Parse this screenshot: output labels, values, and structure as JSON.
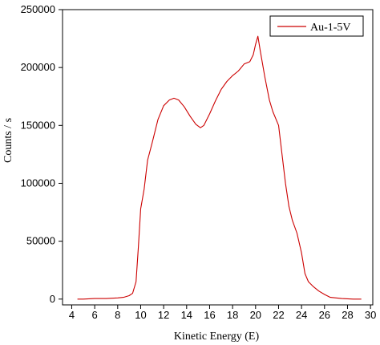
{
  "chart_data": {
    "type": "line",
    "xlabel": "Kinetic Energy (E)",
    "ylabel": "Counts / s",
    "xlim": [
      3.2,
      30.2
    ],
    "ylim": [
      -5000,
      250000
    ],
    "x_ticks": [
      4,
      6,
      8,
      10,
      12,
      14,
      16,
      18,
      20,
      22,
      24,
      26,
      28,
      30
    ],
    "y_ticks": [
      0,
      50000,
      100000,
      150000,
      200000,
      250000
    ],
    "legend": {
      "position": "top-right",
      "entries": [
        "Au-1-5V"
      ]
    },
    "grid": false,
    "series": [
      {
        "name": "Au-1-5V",
        "color": "#cc0000",
        "points": [
          [
            4.5,
            0
          ],
          [
            5.0,
            0
          ],
          [
            6.0,
            500
          ],
          [
            7.0,
            500
          ],
          [
            8.0,
            1000
          ],
          [
            8.5,
            1500
          ],
          [
            9.0,
            3000
          ],
          [
            9.3,
            5000
          ],
          [
            9.6,
            15000
          ],
          [
            9.8,
            45000
          ],
          [
            10.0,
            78000
          ],
          [
            10.3,
            95000
          ],
          [
            10.6,
            120000
          ],
          [
            11.0,
            135000
          ],
          [
            11.5,
            155000
          ],
          [
            12.0,
            167000
          ],
          [
            12.5,
            172000
          ],
          [
            12.9,
            173500
          ],
          [
            13.3,
            172000
          ],
          [
            13.8,
            166000
          ],
          [
            14.3,
            158000
          ],
          [
            14.8,
            151000
          ],
          [
            15.2,
            148000
          ],
          [
            15.5,
            150000
          ],
          [
            16.0,
            160000
          ],
          [
            16.5,
            171000
          ],
          [
            17.0,
            181000
          ],
          [
            17.5,
            188000
          ],
          [
            18.0,
            193000
          ],
          [
            18.5,
            197000
          ],
          [
            19.0,
            203000
          ],
          [
            19.5,
            205000
          ],
          [
            19.8,
            211000
          ],
          [
            20.0,
            220000
          ],
          [
            20.2,
            227000
          ],
          [
            20.4,
            215000
          ],
          [
            20.8,
            192000
          ],
          [
            21.2,
            172000
          ],
          [
            21.5,
            162000
          ],
          [
            22.0,
            150000
          ],
          [
            22.3,
            125000
          ],
          [
            22.6,
            100000
          ],
          [
            22.9,
            80000
          ],
          [
            23.2,
            68000
          ],
          [
            23.6,
            57000
          ],
          [
            24.0,
            40000
          ],
          [
            24.3,
            22000
          ],
          [
            24.6,
            15000
          ],
          [
            25.0,
            11000
          ],
          [
            25.5,
            7000
          ],
          [
            26.0,
            4000
          ],
          [
            26.5,
            1500
          ],
          [
            27.0,
            1000
          ],
          [
            27.5,
            500
          ],
          [
            28.5,
            0
          ],
          [
            29.2,
            0
          ]
        ]
      }
    ]
  }
}
